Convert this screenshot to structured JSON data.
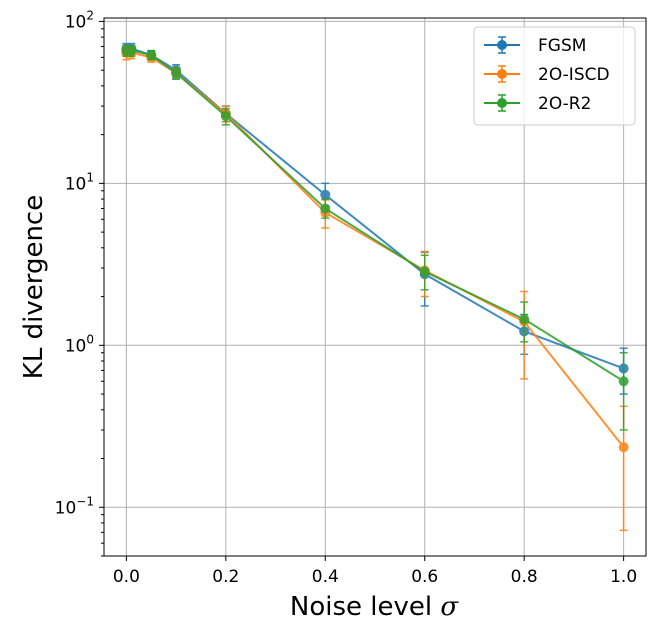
{
  "chart_data": {
    "type": "line",
    "yscale": "log",
    "title": "",
    "xlabel": "Noise level",
    "xlabel_symbol": "σ",
    "ylabel": "KL divergence",
    "xlim": [
      -0.045,
      1.045
    ],
    "ylim": [
      0.05,
      105
    ],
    "grid": true,
    "legend_position": "top-right",
    "x_ticks": [
      0.0,
      0.2,
      0.4,
      0.6,
      0.8,
      1.0
    ],
    "x_tick_labels": [
      "0.0",
      "0.2",
      "0.4",
      "0.6",
      "0.8",
      "1.0"
    ],
    "y_ticks": [
      0.1,
      1,
      10,
      100
    ],
    "y_tick_labels": [
      {
        "base": "10",
        "exp": "−1"
      },
      {
        "base": "10",
        "exp": "0"
      },
      {
        "base": "10",
        "exp": "1"
      },
      {
        "base": "10",
        "exp": "2"
      }
    ],
    "x": [
      0.0,
      0.01,
      0.05,
      0.1,
      0.2,
      0.4,
      0.6,
      0.8,
      1.0
    ],
    "series": [
      {
        "name": "FGSM",
        "color": "#1f77b4",
        "values": [
          68,
          68,
          62,
          50,
          27,
          8.5,
          2.75,
          1.22,
          0.72
        ],
        "err_low": [
          62,
          63,
          58,
          45,
          24,
          7.2,
          1.75,
          0.88,
          0.5
        ],
        "err_high": [
          73,
          73,
          66,
          54,
          30,
          10,
          3.75,
          1.55,
          0.96
        ]
      },
      {
        "name": "2O-ISCD",
        "color": "#ff7f0e",
        "values": [
          64,
          64,
          60,
          48,
          27,
          6.6,
          2.9,
          1.4,
          0.235
        ],
        "err_low": [
          58,
          59,
          56,
          44,
          24,
          5.3,
          2.0,
          0.62,
          0.072
        ],
        "err_high": [
          70,
          70,
          64,
          52,
          30,
          7.9,
          3.8,
          2.15,
          0.42
        ]
      },
      {
        "name": "2O-R2",
        "color": "#2ca02c",
        "values": [
          66,
          66,
          62,
          48,
          26,
          7.0,
          2.85,
          1.45,
          0.6
        ],
        "err_low": [
          61,
          61,
          58,
          44,
          23,
          6.1,
          2.2,
          1.05,
          0.3
        ],
        "err_high": [
          71,
          71,
          66,
          52,
          29,
          8.0,
          3.6,
          1.85,
          0.9
        ]
      }
    ]
  }
}
